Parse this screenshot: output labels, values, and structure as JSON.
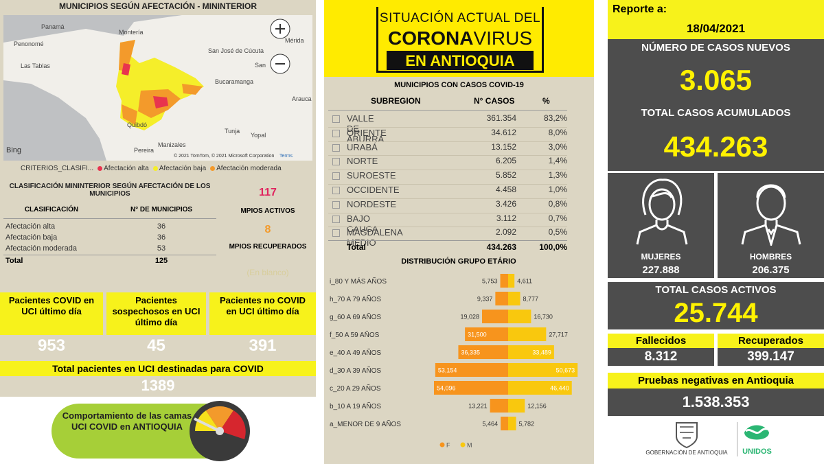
{
  "map": {
    "title": "MUNICIPIOS SEGÚN AFECTACIÓN - MININTERIOR",
    "places": [
      "Panamá",
      "Montería",
      "Mérida",
      "San José de Cúcuta",
      "Penonomé",
      "Bucaramanga",
      "Las Tablas",
      "Arauca",
      "Quibdó",
      "Tunja",
      "Yopal",
      "Pereira",
      "Manizales",
      "San"
    ],
    "bing": "Bing",
    "attribution": "© 2021 TomTom, © 2021 Microsoft Corporation",
    "terms": "Terms",
    "legend_title": "CRITERIOS_CLASIFI...",
    "legend": [
      {
        "label": "Afectación alta",
        "color": "#e8344e"
      },
      {
        "label": "Afectación baja",
        "color": "#f5ee2a"
      },
      {
        "label": "Afectación moderada",
        "color": "#f39a2b"
      }
    ]
  },
  "classification": {
    "title": "CLASIFICACIÓN MININTERIOR SEGÚN AFECTACIÓN DE LOS MUNICIPIOS",
    "headers": [
      "CLASIFICACIÓN",
      "N° DE MUNICIPIOS"
    ],
    "rows": [
      [
        "Afectación alta",
        "36"
      ],
      [
        "Afectación baja",
        "36"
      ],
      [
        "Afectación moderada",
        "53"
      ]
    ],
    "total": [
      "Total",
      "125"
    ],
    "blank": "(En blanco)"
  },
  "municipalities": {
    "active": "117",
    "active_label": "MPIOS ACTIVOS",
    "recovered": "8",
    "recovered_label": "MPIOS RECUPERADOS"
  },
  "uci": {
    "boxes": [
      {
        "label": "Pacientes COVID en UCI último día",
        "value": "953"
      },
      {
        "label": "Pacientes sospechosos en UCI último día",
        "value": "45"
      },
      {
        "label": "Pacientes no COVID en UCI último día",
        "value": "391"
      }
    ],
    "total_label": "Total pacientes en UCI destinadas para COVID",
    "total": "1389",
    "gauge_text": "Comportamiento de las camas UCI COVID en ANTIOQUIA"
  },
  "header": {
    "line1": "SITUACIÓN ACTUAL DEL",
    "corona": "CORONA",
    "virus": "VIRUS",
    "line3": "EN ANTIOQUIA"
  },
  "subregions": {
    "title": "MUNICIPIOS CON CASOS COVID-19",
    "headers": [
      "SUBREGION",
      "N° CASOS",
      "%"
    ],
    "rows": [
      [
        "VALLE DE ABURRÁ",
        "361.354",
        "83,2%"
      ],
      [
        "ORIENTE",
        "34.612",
        "8,0%"
      ],
      [
        "URABÁ",
        "13.152",
        "3,0%"
      ],
      [
        "NORTE",
        "6.205",
        "1,4%"
      ],
      [
        "SUROESTE",
        "5.852",
        "1,3%"
      ],
      [
        "OCCIDENTE",
        "4.458",
        "1,0%"
      ],
      [
        "NORDESTE",
        "3.426",
        "0,8%"
      ],
      [
        "BAJO CAUCA",
        "3.112",
        "0,7%"
      ],
      [
        "MAGDALENA MEDIO",
        "2.092",
        "0,5%"
      ]
    ],
    "total": [
      "Total",
      "434.263",
      "100,0%"
    ]
  },
  "chart_data": {
    "type": "pyramid",
    "title": "DISTRIBUCIÓN GRUPO ETÁRIO",
    "categories": [
      "i_80 Y MÁS AÑOS",
      "h_70 A 79 AÑOS",
      "g_60 A 69 AÑOS",
      "f_50 A 59 AÑOS",
      "e_40 A 49 AÑOS",
      "d_30 A 39 AÑOS",
      "c_20 A 29 AÑOS",
      "b_10 A 19 AÑOS",
      "a_MENOR DE 9 AÑOS"
    ],
    "series": [
      {
        "name": "F",
        "color": "#f7941d",
        "values": [
          5753,
          9337,
          19028,
          31500,
          36335,
          53154,
          54096,
          13221,
          5464
        ],
        "value_labels": [
          "5,753",
          "9,337",
          "19,028",
          "31,500",
          "36,335",
          "53,154",
          "54,096",
          "13,221",
          "5,464"
        ]
      },
      {
        "name": "M",
        "color": "#f9c80e",
        "values": [
          4611,
          8777,
          16730,
          27717,
          33489,
          50673,
          46440,
          12156,
          5782
        ],
        "value_labels": [
          "4,611",
          "8,777",
          "16,730",
          "27,717",
          "33,489",
          "50,673",
          "46,440",
          "12,156",
          "5,782"
        ]
      }
    ]
  },
  "report": {
    "label": "Reporte a:",
    "date": "18/04/2021",
    "new_cases_label": "NÚMERO DE CASOS NUEVOS",
    "new_cases": "3.065",
    "total_label": "TOTAL CASOS ACUMULADOS",
    "total": "434.263",
    "women_label": "MUJERES",
    "women": "227.888",
    "men_label": "HOMBRES",
    "men": "206.375",
    "active_label": "TOTAL CASOS ACTIVOS",
    "active": "25.744",
    "deaths_label": "Fallecidos",
    "deaths": "8.312",
    "recovered_label": "Recuperados",
    "recovered": "399.147",
    "negative_label": "Pruebas negativas en Antioquia",
    "negative": "1.538.353",
    "logo_gov": "GOBERNACIÓN DE ANTIOQUIA",
    "logo_unidos": "UNIDOS"
  }
}
